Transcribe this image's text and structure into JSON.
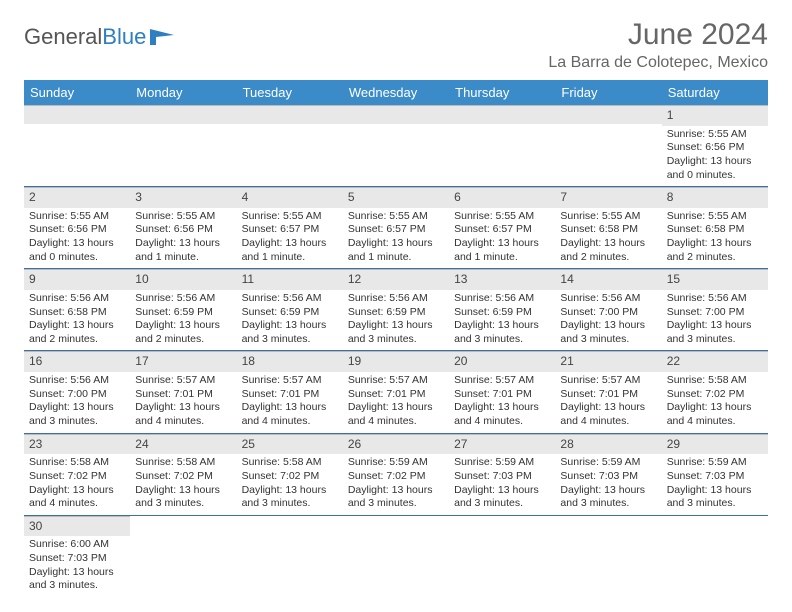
{
  "logo": {
    "text1": "General",
    "text2": "Blue"
  },
  "title": "June 2024",
  "location": "La Barra de Colotepec, Mexico",
  "colors": {
    "header_bg": "#3b8bc9",
    "header_fg": "#ffffff",
    "daynum_bg": "#e8e8e8",
    "row_border": "#3b6fa8",
    "logo_gray": "#555555",
    "logo_blue": "#2d7fc1",
    "title_color": "#666666"
  },
  "weekdays": [
    "Sunday",
    "Monday",
    "Tuesday",
    "Wednesday",
    "Thursday",
    "Friday",
    "Saturday"
  ],
  "weeks": [
    [
      null,
      null,
      null,
      null,
      null,
      null,
      {
        "n": "1",
        "sr": "Sunrise: 5:55 AM",
        "ss": "Sunset: 6:56 PM",
        "dl": "Daylight: 13 hours and 0 minutes."
      }
    ],
    [
      {
        "n": "2",
        "sr": "Sunrise: 5:55 AM",
        "ss": "Sunset: 6:56 PM",
        "dl": "Daylight: 13 hours and 0 minutes."
      },
      {
        "n": "3",
        "sr": "Sunrise: 5:55 AM",
        "ss": "Sunset: 6:56 PM",
        "dl": "Daylight: 13 hours and 1 minute."
      },
      {
        "n": "4",
        "sr": "Sunrise: 5:55 AM",
        "ss": "Sunset: 6:57 PM",
        "dl": "Daylight: 13 hours and 1 minute."
      },
      {
        "n": "5",
        "sr": "Sunrise: 5:55 AM",
        "ss": "Sunset: 6:57 PM",
        "dl": "Daylight: 13 hours and 1 minute."
      },
      {
        "n": "6",
        "sr": "Sunrise: 5:55 AM",
        "ss": "Sunset: 6:57 PM",
        "dl": "Daylight: 13 hours and 1 minute."
      },
      {
        "n": "7",
        "sr": "Sunrise: 5:55 AM",
        "ss": "Sunset: 6:58 PM",
        "dl": "Daylight: 13 hours and 2 minutes."
      },
      {
        "n": "8",
        "sr": "Sunrise: 5:55 AM",
        "ss": "Sunset: 6:58 PM",
        "dl": "Daylight: 13 hours and 2 minutes."
      }
    ],
    [
      {
        "n": "9",
        "sr": "Sunrise: 5:56 AM",
        "ss": "Sunset: 6:58 PM",
        "dl": "Daylight: 13 hours and 2 minutes."
      },
      {
        "n": "10",
        "sr": "Sunrise: 5:56 AM",
        "ss": "Sunset: 6:59 PM",
        "dl": "Daylight: 13 hours and 2 minutes."
      },
      {
        "n": "11",
        "sr": "Sunrise: 5:56 AM",
        "ss": "Sunset: 6:59 PM",
        "dl": "Daylight: 13 hours and 3 minutes."
      },
      {
        "n": "12",
        "sr": "Sunrise: 5:56 AM",
        "ss": "Sunset: 6:59 PM",
        "dl": "Daylight: 13 hours and 3 minutes."
      },
      {
        "n": "13",
        "sr": "Sunrise: 5:56 AM",
        "ss": "Sunset: 6:59 PM",
        "dl": "Daylight: 13 hours and 3 minutes."
      },
      {
        "n": "14",
        "sr": "Sunrise: 5:56 AM",
        "ss": "Sunset: 7:00 PM",
        "dl": "Daylight: 13 hours and 3 minutes."
      },
      {
        "n": "15",
        "sr": "Sunrise: 5:56 AM",
        "ss": "Sunset: 7:00 PM",
        "dl": "Daylight: 13 hours and 3 minutes."
      }
    ],
    [
      {
        "n": "16",
        "sr": "Sunrise: 5:56 AM",
        "ss": "Sunset: 7:00 PM",
        "dl": "Daylight: 13 hours and 3 minutes."
      },
      {
        "n": "17",
        "sr": "Sunrise: 5:57 AM",
        "ss": "Sunset: 7:01 PM",
        "dl": "Daylight: 13 hours and 4 minutes."
      },
      {
        "n": "18",
        "sr": "Sunrise: 5:57 AM",
        "ss": "Sunset: 7:01 PM",
        "dl": "Daylight: 13 hours and 4 minutes."
      },
      {
        "n": "19",
        "sr": "Sunrise: 5:57 AM",
        "ss": "Sunset: 7:01 PM",
        "dl": "Daylight: 13 hours and 4 minutes."
      },
      {
        "n": "20",
        "sr": "Sunrise: 5:57 AM",
        "ss": "Sunset: 7:01 PM",
        "dl": "Daylight: 13 hours and 4 minutes."
      },
      {
        "n": "21",
        "sr": "Sunrise: 5:57 AM",
        "ss": "Sunset: 7:01 PM",
        "dl": "Daylight: 13 hours and 4 minutes."
      },
      {
        "n": "22",
        "sr": "Sunrise: 5:58 AM",
        "ss": "Sunset: 7:02 PM",
        "dl": "Daylight: 13 hours and 4 minutes."
      }
    ],
    [
      {
        "n": "23",
        "sr": "Sunrise: 5:58 AM",
        "ss": "Sunset: 7:02 PM",
        "dl": "Daylight: 13 hours and 4 minutes."
      },
      {
        "n": "24",
        "sr": "Sunrise: 5:58 AM",
        "ss": "Sunset: 7:02 PM",
        "dl": "Daylight: 13 hours and 3 minutes."
      },
      {
        "n": "25",
        "sr": "Sunrise: 5:58 AM",
        "ss": "Sunset: 7:02 PM",
        "dl": "Daylight: 13 hours and 3 minutes."
      },
      {
        "n": "26",
        "sr": "Sunrise: 5:59 AM",
        "ss": "Sunset: 7:02 PM",
        "dl": "Daylight: 13 hours and 3 minutes."
      },
      {
        "n": "27",
        "sr": "Sunrise: 5:59 AM",
        "ss": "Sunset: 7:03 PM",
        "dl": "Daylight: 13 hours and 3 minutes."
      },
      {
        "n": "28",
        "sr": "Sunrise: 5:59 AM",
        "ss": "Sunset: 7:03 PM",
        "dl": "Daylight: 13 hours and 3 minutes."
      },
      {
        "n": "29",
        "sr": "Sunrise: 5:59 AM",
        "ss": "Sunset: 7:03 PM",
        "dl": "Daylight: 13 hours and 3 minutes."
      }
    ],
    [
      {
        "n": "30",
        "sr": "Sunrise: 6:00 AM",
        "ss": "Sunset: 7:03 PM",
        "dl": "Daylight: 13 hours and 3 minutes."
      },
      null,
      null,
      null,
      null,
      null,
      null
    ]
  ]
}
